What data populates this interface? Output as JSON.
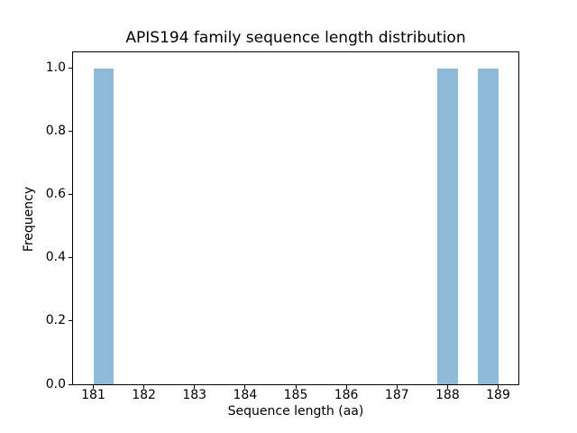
{
  "chart_data": {
    "type": "bar",
    "subtype": "histogram",
    "title": "APIS194 family sequence length distribution",
    "xlabel": "Sequence length (aa)",
    "ylabel": "Frequency",
    "xlim": [
      180.6,
      189.4
    ],
    "ylim": [
      0,
      1.05
    ],
    "x_tick_values": [
      181,
      182,
      183,
      184,
      185,
      186,
      187,
      188,
      189
    ],
    "x_tick_labels": [
      "181",
      "182",
      "183",
      "184",
      "185",
      "186",
      "187",
      "188",
      "189"
    ],
    "y_tick_values": [
      0.0,
      0.2,
      0.4,
      0.6,
      0.8,
      1.0
    ],
    "y_tick_labels": [
      "0.0",
      "0.2",
      "0.4",
      "0.6",
      "0.8",
      "1.0"
    ],
    "bin_width": 0.4,
    "bars": [
      {
        "x_start": 181.0,
        "x_end": 181.4,
        "value": 1.0
      },
      {
        "x_start": 187.8,
        "x_end": 188.2,
        "value": 1.0
      },
      {
        "x_start": 188.6,
        "x_end": 189.0,
        "value": 1.0
      }
    ],
    "grid": false,
    "legend": false,
    "colors": {
      "bar": "#8fbbd9",
      "axis": "#000000",
      "text": "#000000",
      "background": "#ffffff"
    }
  }
}
